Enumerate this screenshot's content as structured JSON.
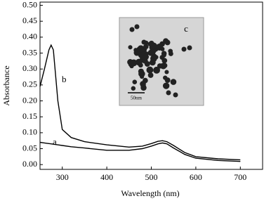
{
  "chart_data": {
    "type": "line",
    "x_label": "Wavelength (nm)",
    "y_label": "Absorbance",
    "x": [
      250,
      260,
      270,
      275,
      280,
      290,
      300,
      320,
      350,
      400,
      450,
      480,
      500,
      515,
      525,
      535,
      550,
      575,
      600,
      650,
      700
    ],
    "series": [
      {
        "name": "a",
        "color": "#000000",
        "values": [
          0.07,
          0.068,
          0.066,
          0.065,
          0.064,
          0.062,
          0.06,
          0.056,
          0.052,
          0.045,
          0.045,
          0.05,
          0.058,
          0.065,
          0.068,
          0.065,
          0.052,
          0.032,
          0.02,
          0.013,
          0.01
        ]
      },
      {
        "name": "b",
        "color": "#000000",
        "values": [
          0.245,
          0.3,
          0.36,
          0.375,
          0.36,
          0.2,
          0.11,
          0.085,
          0.072,
          0.062,
          0.055,
          0.058,
          0.066,
          0.073,
          0.075,
          0.072,
          0.06,
          0.038,
          0.025,
          0.018,
          0.015
        ]
      }
    ],
    "xlim": [
      250,
      750
    ],
    "xticks": [
      300,
      400,
      500,
      600,
      700
    ],
    "ylim": [
      -0.015,
      0.51
    ],
    "yticks": [
      {
        "value": 0,
        "label": "0.00"
      },
      {
        "value": 0.05,
        "label": "0.05"
      },
      {
        "value": 0.1,
        "label": "0.10"
      },
      {
        "value": 0.15,
        "label": "0.15"
      },
      {
        "value": 0.2,
        "label": "0.20"
      },
      {
        "value": 0.25,
        "label": "0.25"
      },
      {
        "value": 0.3,
        "label": "0.30"
      },
      {
        "value": 0.35,
        "label": "0.35"
      },
      {
        "value": 0.4,
        "label": "0.40"
      },
      {
        "value": 0.45,
        "label": "0.45"
      },
      {
        "value": 0.5,
        "label": "0.50"
      }
    ],
    "annotations": [
      "c",
      "50nm"
    ]
  }
}
